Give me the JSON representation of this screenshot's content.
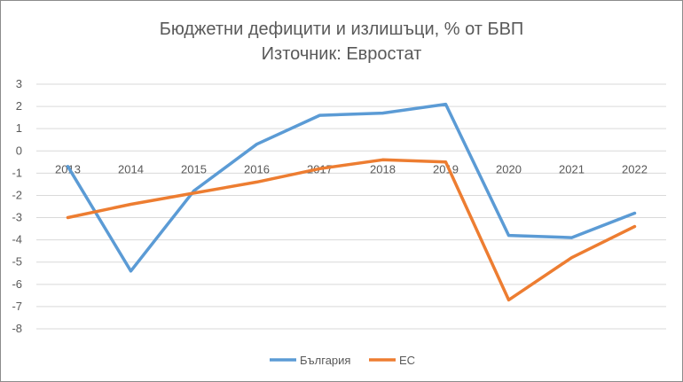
{
  "chart_data": {
    "type": "line",
    "title": "Бюджетни дефицити и излишъци, % от БВП",
    "subtitle": "Източник: Евростат",
    "categories": [
      "2013",
      "2014",
      "2015",
      "2016",
      "2017",
      "2018",
      "2019",
      "2020",
      "2021",
      "2022"
    ],
    "ylim": [
      -8,
      3
    ],
    "yticks": [
      "3",
      "2",
      "1",
      "0",
      "-1",
      "-2",
      "-3",
      "-4",
      "-5",
      "-6",
      "-7",
      "-8"
    ],
    "grid": true,
    "legend_position": "bottom",
    "series": [
      {
        "name": "България",
        "color": "#5b9bd5",
        "values": [
          -0.7,
          -5.4,
          -1.8,
          0.3,
          1.6,
          1.7,
          2.1,
          -3.8,
          -3.9,
          -2.8
        ]
      },
      {
        "name": "ЕС",
        "color": "#ed7d31",
        "values": [
          -3.0,
          -2.4,
          -1.9,
          -1.4,
          -0.8,
          -0.4,
          -0.5,
          -6.7,
          -4.8,
          -3.4
        ]
      }
    ]
  }
}
